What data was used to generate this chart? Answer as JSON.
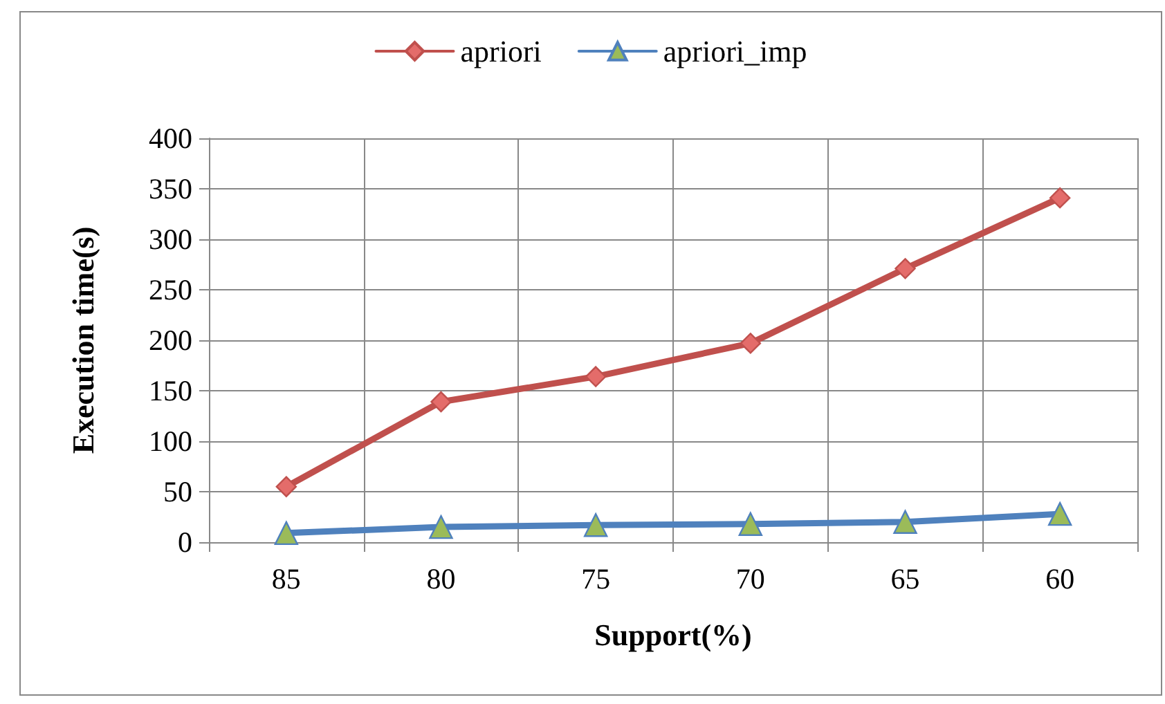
{
  "chart_data": {
    "type": "line",
    "xlabel": "Support(%)",
    "ylabel": "Execution time(s)",
    "categories": [
      "85",
      "80",
      "75",
      "70",
      "65",
      "60"
    ],
    "series": [
      {
        "name": "apriori",
        "color": "#c0504d",
        "marker": "diamond",
        "values": [
          55,
          139,
          164,
          197,
          271,
          341
        ]
      },
      {
        "name": "apriori_imp",
        "color": "#4f81bd",
        "marker": "triangle",
        "values": [
          9,
          15,
          17,
          18,
          20,
          28
        ]
      }
    ],
    "ylim": [
      0,
      400
    ],
    "yticks": [
      0,
      50,
      100,
      150,
      200,
      250,
      300,
      350,
      400
    ],
    "grid": true,
    "legend": "top"
  }
}
